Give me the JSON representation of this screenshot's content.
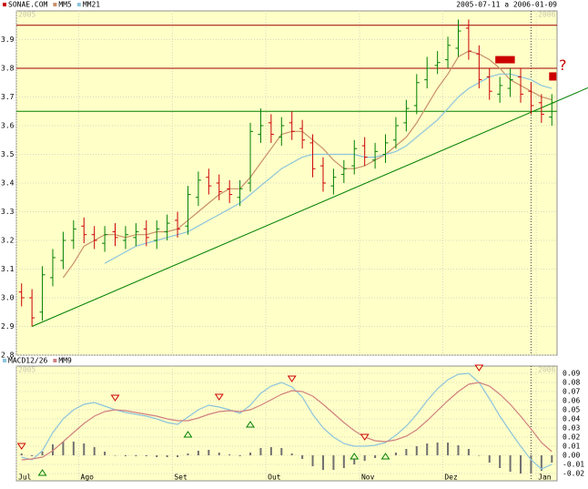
{
  "chart_data": [
    {
      "type": "ohlc",
      "name": "SONAE.COM",
      "title": "2005-07-11 a 2006-01-09",
      "year_labels": [
        "2005",
        "2006"
      ],
      "categories": [
        "Jul",
        null,
        null,
        null,
        null,
        null,
        "Ago",
        null,
        null,
        null,
        null,
        null,
        null,
        null,
        null,
        "Set",
        null,
        null,
        null,
        null,
        null,
        null,
        null,
        null,
        "Out",
        null,
        null,
        null,
        null,
        null,
        null,
        null,
        null,
        "Nov",
        null,
        null,
        null,
        null,
        null,
        null,
        null,
        "Dez",
        null,
        null,
        null,
        null,
        null,
        null,
        null,
        null,
        "Jan",
        null
      ],
      "open": [
        3.02,
        3.0,
        2.95,
        3.07,
        3.13,
        3.2,
        3.25,
        3.22,
        3.19,
        3.23,
        3.2,
        3.21,
        3.24,
        3.2,
        3.23,
        3.27,
        3.25,
        3.35,
        3.42,
        3.4,
        3.38,
        3.35,
        3.4,
        3.57,
        3.61,
        3.56,
        3.61,
        3.59,
        3.54,
        3.46,
        3.39,
        3.43,
        3.46,
        3.53,
        3.48,
        3.5,
        3.55,
        3.61,
        3.67,
        3.76,
        3.81,
        3.83,
        3.87,
        3.94,
        3.85,
        3.77,
        3.71,
        3.73,
        3.77,
        3.72,
        3.68,
        3.63
      ],
      "high": [
        3.05,
        3.03,
        3.11,
        3.17,
        3.23,
        3.27,
        3.28,
        3.25,
        3.25,
        3.26,
        3.25,
        3.26,
        3.27,
        3.27,
        3.29,
        3.3,
        3.39,
        3.44,
        3.45,
        3.43,
        3.41,
        3.41,
        3.61,
        3.66,
        3.64,
        3.63,
        3.65,
        3.62,
        3.57,
        3.49,
        3.45,
        3.48,
        3.55,
        3.56,
        3.54,
        3.57,
        3.63,
        3.69,
        3.78,
        3.84,
        3.86,
        3.91,
        3.97,
        3.97,
        3.88,
        3.8,
        3.77,
        3.8,
        3.8,
        3.75,
        3.71,
        3.71
      ],
      "low": [
        2.97,
        2.9,
        2.92,
        3.04,
        3.1,
        3.17,
        3.19,
        3.17,
        3.16,
        3.18,
        3.17,
        3.18,
        3.18,
        3.17,
        3.2,
        3.21,
        3.22,
        3.32,
        3.36,
        3.34,
        3.33,
        3.32,
        3.37,
        3.54,
        3.54,
        3.53,
        3.55,
        3.52,
        3.42,
        3.37,
        3.36,
        3.4,
        3.43,
        3.46,
        3.45,
        3.47,
        3.52,
        3.58,
        3.64,
        3.73,
        3.78,
        3.8,
        3.84,
        3.83,
        3.73,
        3.69,
        3.68,
        3.7,
        3.68,
        3.64,
        3.61,
        3.6
      ],
      "close": [
        3.0,
        2.93,
        3.08,
        3.14,
        3.2,
        3.24,
        3.22,
        3.2,
        3.22,
        3.21,
        3.22,
        3.23,
        3.21,
        3.24,
        3.26,
        3.24,
        3.36,
        3.41,
        3.39,
        3.37,
        3.36,
        3.38,
        3.58,
        3.6,
        3.57,
        3.6,
        3.58,
        3.55,
        3.45,
        3.4,
        3.42,
        3.45,
        3.52,
        3.49,
        3.51,
        3.54,
        3.6,
        3.66,
        3.75,
        3.8,
        3.82,
        3.88,
        3.93,
        3.86,
        3.76,
        3.72,
        3.74,
        3.76,
        3.71,
        3.67,
        3.64,
        3.68
      ],
      "up_color": "#008000",
      "down_color": "#cc0000",
      "name_color": "#cc0000",
      "series": [
        {
          "name": "MM5",
          "color": "#c8906a",
          "values": [
            null,
            null,
            null,
            null,
            3.07,
            3.12,
            3.18,
            3.2,
            3.22,
            3.22,
            3.21,
            3.22,
            3.22,
            3.23,
            3.23,
            3.24,
            3.27,
            3.3,
            3.33,
            3.36,
            3.38,
            3.38,
            3.42,
            3.47,
            3.52,
            3.57,
            3.58,
            3.58,
            3.55,
            3.52,
            3.48,
            3.45,
            3.45,
            3.46,
            3.48,
            3.5,
            3.53,
            3.56,
            3.61,
            3.67,
            3.73,
            3.78,
            3.84,
            3.86,
            3.85,
            3.83,
            3.8,
            3.76,
            3.74,
            3.72,
            3.7,
            3.69
          ]
        },
        {
          "name": "MM21",
          "color": "#8cc4dc",
          "values": [
            null,
            null,
            null,
            null,
            null,
            null,
            null,
            null,
            3.12,
            3.14,
            3.16,
            3.18,
            3.19,
            3.2,
            3.21,
            3.22,
            3.23,
            3.25,
            3.27,
            3.29,
            3.31,
            3.33,
            3.36,
            3.39,
            3.42,
            3.45,
            3.47,
            3.49,
            3.5,
            3.5,
            3.5,
            3.5,
            3.5,
            3.49,
            3.49,
            3.5,
            3.51,
            3.53,
            3.56,
            3.59,
            3.62,
            3.66,
            3.7,
            3.73,
            3.75,
            3.77,
            3.78,
            3.78,
            3.77,
            3.76,
            3.74,
            3.73
          ]
        }
      ],
      "ylim": [
        2.8,
        4.0
      ],
      "yticks": [
        2.8,
        2.9,
        {
          "value": 3,
          "label": "3.0"
        },
        3.1,
        3.2,
        3.3,
        3.4,
        3.5,
        3.6,
        3.7,
        3.8,
        3.9
      ],
      "grid": true,
      "levels": [
        {
          "value": 3.95,
          "color": "#a00000"
        },
        {
          "value": 3.8,
          "color": "#a00000"
        },
        {
          "value": 3.65,
          "color": "#008000"
        }
      ],
      "trend_line": {
        "color": "#008000",
        "x": [
          1,
          51
        ],
        "values": [
          2.9,
          3.678
        ]
      },
      "highlight": {
        "x": [
          46,
          47
        ],
        "value": 3.83,
        "color": "#cc0000"
      },
      "annotations": [
        {
          "text": "?",
          "x": 51,
          "value": 3.77,
          "color": "#cc0000"
        }
      ]
    },
    {
      "type": "macd",
      "year_labels": [
        "2005",
        "2006"
      ],
      "series": [
        {
          "name": "MACD12/26",
          "color": "#8cc4dc",
          "values": [
            -0.002,
            -0.005,
            0.005,
            0.025,
            0.04,
            0.05,
            0.056,
            0.058,
            0.054,
            0.05,
            0.047,
            0.045,
            0.043,
            0.04,
            0.036,
            0.034,
            0.042,
            0.05,
            0.055,
            0.053,
            0.05,
            0.046,
            0.055,
            0.068,
            0.076,
            0.08,
            0.075,
            0.064,
            0.045,
            0.03,
            0.02,
            0.013,
            0.01,
            0.01,
            0.011,
            0.014,
            0.022,
            0.032,
            0.045,
            0.06,
            0.073,
            0.083,
            0.089,
            0.09,
            0.08,
            0.062,
            0.043,
            0.026,
            0.01,
            -0.005,
            -0.015,
            -0.01
          ]
        },
        {
          "name": "MM9",
          "color": "#d08080",
          "values": [
            -0.005,
            -0.004,
            -0.002,
            0.005,
            0.015,
            0.025,
            0.035,
            0.043,
            0.048,
            0.05,
            0.049,
            0.047,
            0.045,
            0.043,
            0.04,
            0.038,
            0.038,
            0.041,
            0.045,
            0.048,
            0.049,
            0.048,
            0.05,
            0.055,
            0.061,
            0.067,
            0.071,
            0.07,
            0.065,
            0.056,
            0.046,
            0.036,
            0.027,
            0.02,
            0.016,
            0.015,
            0.017,
            0.021,
            0.028,
            0.038,
            0.049,
            0.06,
            0.07,
            0.078,
            0.08,
            0.076,
            0.067,
            0.056,
            0.043,
            0.029,
            0.014,
            0.004
          ]
        }
      ],
      "histogram": {
        "color": "#707070",
        "values": [
          0.002,
          -0.001,
          0.004,
          0.012,
          0.015,
          0.015,
          0.013,
          0.009,
          0.004,
          0.0,
          -0.001,
          -0.001,
          -0.001,
          -0.002,
          -0.002,
          -0.002,
          0.002,
          0.005,
          0.006,
          0.003,
          0.001,
          -0.001,
          0.003,
          0.008,
          0.009,
          0.008,
          0.002,
          -0.004,
          -0.012,
          -0.016,
          -0.016,
          -0.014,
          -0.01,
          -0.006,
          -0.003,
          -0.001,
          0.003,
          0.007,
          0.01,
          0.013,
          0.014,
          0.014,
          0.011,
          0.007,
          0.0,
          -0.008,
          -0.014,
          -0.018,
          -0.02,
          -0.02,
          -0.017,
          -0.008
        ]
      },
      "sell_signals": {
        "color": "#cc0000",
        "points": [
          {
            "index": 0,
            "value": 0.003
          },
          {
            "index": 9,
            "value": 0.056
          },
          {
            "index": 19,
            "value": 0.057
          },
          {
            "index": 26,
            "value": 0.077
          },
          {
            "index": 33,
            "value": 0.013
          },
          {
            "index": 44,
            "value": 0.089
          }
        ]
      },
      "buy_signals": {
        "color": "#008000",
        "points": [
          {
            "index": 2,
            "value": -0.012
          },
          {
            "index": 16,
            "value": 0.03
          },
          {
            "index": 22,
            "value": 0.041
          },
          {
            "index": 32,
            "value": 0.006
          },
          {
            "index": 35,
            "value": 0.006
          }
        ]
      },
      "ylim": [
        -0.028,
        0.098
      ],
      "yticks": [
        -0.02,
        -0.01,
        {
          "value": 0,
          "label": "0.00"
        },
        0.01,
        0.02,
        0.03,
        0.04,
        0.05,
        0.06,
        0.07,
        0.08,
        0.09
      ],
      "grid": true
    }
  ]
}
